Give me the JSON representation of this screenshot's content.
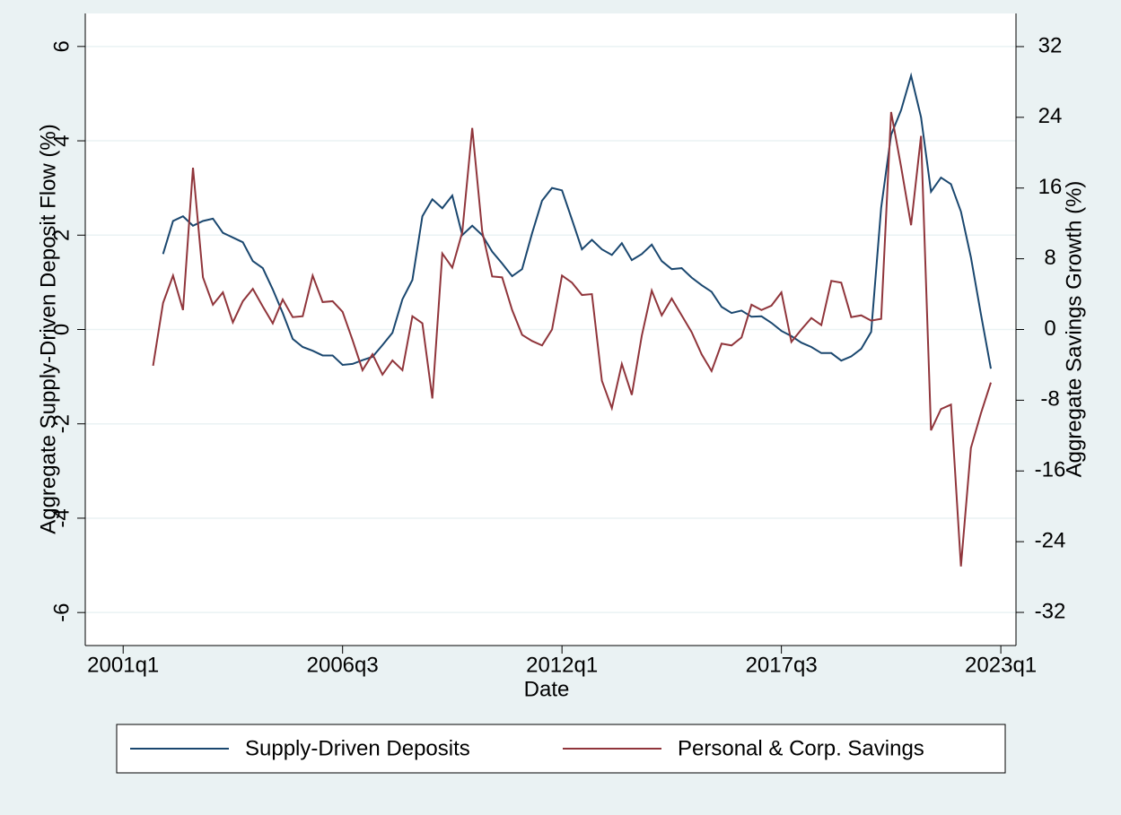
{
  "chart_data": {
    "type": "line",
    "xlabel": "Date",
    "ylabel": "Aggregate Supply-Driven Deposit Flow (%)",
    "y2label": "Aggregate Savings Growth (%)",
    "x": [
      2001.75,
      2002,
      2002.25,
      2002.5,
      2002.75,
      2003,
      2003.25,
      2003.5,
      2003.75,
      2004,
      2004.25,
      2004.5,
      2004.75,
      2005,
      2005.25,
      2005.5,
      2005.75,
      2006,
      2006.25,
      2006.5,
      2006.75,
      2007,
      2007.25,
      2007.5,
      2007.75,
      2008,
      2008.25,
      2008.5,
      2008.75,
      2009,
      2009.25,
      2009.5,
      2009.75,
      2010,
      2010.25,
      2010.5,
      2010.75,
      2011,
      2011.25,
      2011.5,
      2011.75,
      2012,
      2012.25,
      2012.5,
      2012.75,
      2013,
      2013.25,
      2013.5,
      2013.75,
      2014,
      2014.25,
      2014.5,
      2014.75,
      2015,
      2015.25,
      2015.5,
      2015.75,
      2016,
      2016.25,
      2016.5,
      2016.75,
      2017,
      2017.25,
      2017.5,
      2017.75,
      2018,
      2018.25,
      2018.5,
      2018.75,
      2019,
      2019.25,
      2019.5,
      2019.75,
      2020,
      2020.25,
      2020.5,
      2020.75,
      2021,
      2021.25,
      2021.5,
      2021.75,
      2022,
      2022.25,
      2022.5,
      2022.75
    ],
    "series": [
      {
        "name": "Supply-Driven Deposits",
        "color": "#1a476f",
        "axis": "y",
        "values": [
          null,
          1.6,
          2.3,
          2.4,
          2.2,
          2.3,
          2.35,
          2.05,
          1.95,
          1.85,
          1.45,
          1.3,
          0.85,
          0.35,
          -0.2,
          -0.37,
          -0.45,
          -0.55,
          -0.55,
          -0.75,
          -0.73,
          -0.65,
          -0.58,
          -0.33,
          -0.07,
          0.64,
          1.05,
          2.4,
          2.76,
          2.57,
          2.84,
          2.0,
          2.2,
          2.0,
          1.65,
          1.4,
          1.13,
          1.28,
          2.04,
          2.73,
          3.0,
          2.95,
          2.33,
          1.7,
          1.9,
          1.7,
          1.58,
          1.83,
          1.47,
          1.6,
          1.8,
          1.45,
          1.28,
          1.3,
          1.1,
          0.94,
          0.8,
          0.48,
          0.35,
          0.4,
          0.27,
          0.28,
          0.14,
          -0.03,
          -0.14,
          -0.28,
          -0.37,
          -0.5,
          -0.5,
          -0.66,
          -0.57,
          -0.41,
          -0.05,
          2.58,
          4.13,
          4.65,
          5.38,
          4.5,
          2.92,
          3.22,
          3.08,
          2.5,
          1.53,
          0.33,
          -0.83
        ]
      },
      {
        "name": "Personal & Corp. Savings",
        "color": "#90353b",
        "axis": "y2",
        "values": [
          -4.1,
          3.0,
          6.1,
          2.2,
          18.3,
          5.9,
          2.8,
          4.2,
          0.8,
          3.2,
          4.6,
          2.6,
          0.7,
          3.4,
          1.4,
          1.5,
          6.1,
          3.1,
          3.2,
          2.0,
          -1.2,
          -4.6,
          -2.8,
          -5.1,
          -3.5,
          -4.6,
          1.5,
          0.7,
          -7.8,
          8.6,
          7.0,
          11.0,
          22.8,
          11.1,
          6.0,
          5.9,
          2.2,
          -0.6,
          -1.3,
          -1.8,
          0,
          6.1,
          5.3,
          3.9,
          4.0,
          -5.8,
          -8.9,
          -3.9,
          -7.4,
          -0.7,
          4.4,
          1.6,
          3.5,
          1.6,
          -0.3,
          -2.8,
          -4.7,
          -1.6,
          -1.8,
          -0.9,
          2.8,
          2.2,
          2.7,
          4.2,
          -1.4,
          0,
          1.3,
          0.5,
          5.5,
          5.3,
          1.4,
          1.6,
          1.0,
          1.2,
          24.6,
          18.4,
          11.8,
          21.9,
          -11.4,
          -9.0,
          -8.5,
          -26.8,
          -13.4,
          -9.5,
          -6.0
        ]
      }
    ],
    "xlim": [
      2000.05,
      2023.38
    ],
    "xticks": [
      {
        "value": 2001,
        "label": "2001q1"
      },
      {
        "value": 2006.5,
        "label": "2006q3"
      },
      {
        "value": 2012,
        "label": "2012q1"
      },
      {
        "value": 2017.5,
        "label": "2017q3"
      },
      {
        "value": 2023,
        "label": "2023q1"
      }
    ],
    "ylim": [
      -6.7,
      6.7
    ],
    "yticks": [
      -6,
      -4,
      -2,
      0,
      2,
      4,
      6
    ],
    "y2lim": [
      -35.75,
      35.75
    ],
    "y2ticks": [
      -32,
      -24,
      -16,
      -8,
      0,
      8,
      16,
      24,
      32
    ],
    "grid": true
  }
}
